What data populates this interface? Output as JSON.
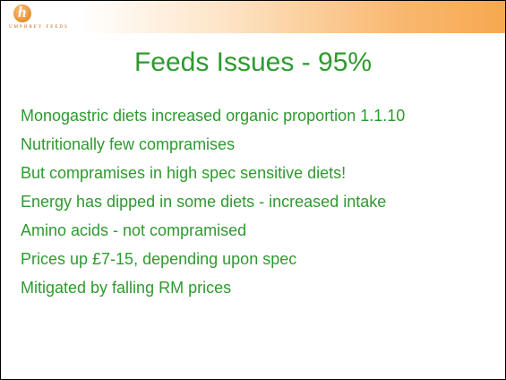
{
  "header": {
    "logo_text": "UMPHREY FEEDS"
  },
  "title": "Feeds Issues - 95%",
  "bullets": [
    "Monogastric diets increased organic proportion 1.1.10",
    "Nutritionally few compramises",
    "But compramises in high spec sensitive diets!",
    "Energy has dipped in some diets - increased intake",
    "Amino acids - not compramised",
    "Prices up £7-15, depending upon spec",
    "Mitigated by falling RM prices"
  ]
}
